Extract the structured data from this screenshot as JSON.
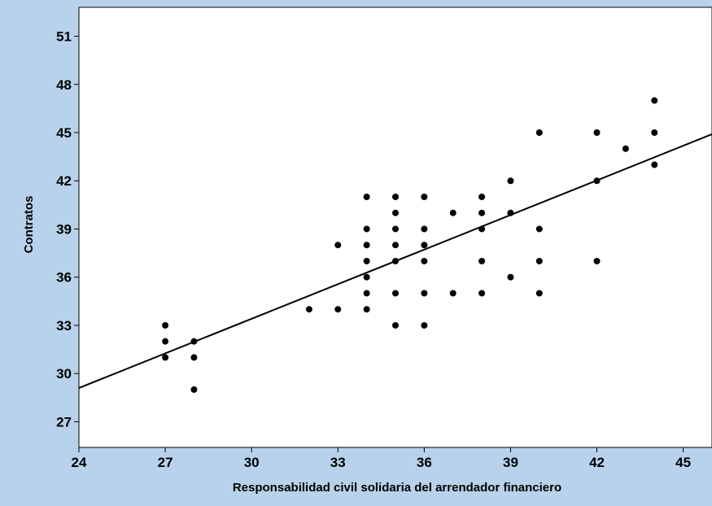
{
  "chart_data": {
    "type": "scatter",
    "xlabel": "Responsabilidad civil solidaria del arrendador financiero",
    "ylabel": "Contratos",
    "xlim": [
      24,
      46
    ],
    "ylim": [
      25.4,
      52.8
    ],
    "x_ticks": [
      24,
      27,
      30,
      33,
      36,
      39,
      42,
      45
    ],
    "y_ticks": [
      27,
      30,
      33,
      36,
      39,
      42,
      45,
      48,
      51
    ],
    "grid": false,
    "legend": "none",
    "colors": {
      "background": "#b7d2ea",
      "plot_area": "#ffffff",
      "points": "#000000",
      "fit_line": "#000000"
    },
    "series": [
      {
        "points": [
          [
            27,
            33
          ],
          [
            27,
            32
          ],
          [
            27,
            31
          ],
          [
            28,
            32
          ],
          [
            28,
            31
          ],
          [
            28,
            29
          ],
          [
            32,
            34
          ],
          [
            33,
            38
          ],
          [
            33,
            34
          ],
          [
            34,
            41
          ],
          [
            34,
            39
          ],
          [
            34,
            38
          ],
          [
            34,
            37
          ],
          [
            34,
            36
          ],
          [
            34,
            35
          ],
          [
            34,
            34
          ],
          [
            35,
            41
          ],
          [
            35,
            40
          ],
          [
            35,
            39
          ],
          [
            35,
            38
          ],
          [
            35,
            37
          ],
          [
            35,
            35
          ],
          [
            35,
            33
          ],
          [
            36,
            41
          ],
          [
            36,
            39
          ],
          [
            36,
            38
          ],
          [
            36,
            37
          ],
          [
            36,
            35
          ],
          [
            36,
            33
          ],
          [
            37,
            40
          ],
          [
            37,
            35
          ],
          [
            38,
            41
          ],
          [
            38,
            40
          ],
          [
            38,
            39
          ],
          [
            38,
            37
          ],
          [
            38,
            35
          ],
          [
            39,
            42
          ],
          [
            39,
            40
          ],
          [
            39,
            36
          ],
          [
            40,
            45
          ],
          [
            40,
            39
          ],
          [
            40,
            37
          ],
          [
            40,
            35
          ],
          [
            42,
            45
          ],
          [
            42,
            42
          ],
          [
            42,
            37
          ],
          [
            43,
            44
          ],
          [
            44,
            47
          ],
          [
            44,
            45
          ],
          [
            44,
            43
          ]
        ]
      }
    ],
    "fit_line": {
      "x": [
        24,
        46
      ],
      "y": [
        29.1,
        44.9
      ]
    }
  }
}
